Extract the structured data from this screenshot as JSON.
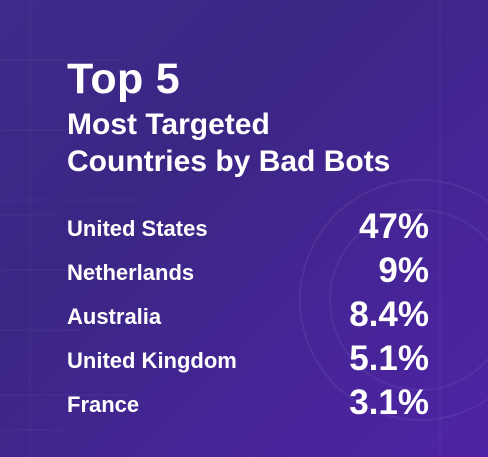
{
  "chart_data": {
    "type": "table",
    "title": "Top 5",
    "subtitle_lines": [
      "Most Targeted",
      "Countries by Bad Bots"
    ],
    "rows": [
      {
        "country": "United States",
        "value": 47,
        "label": "47%"
      },
      {
        "country": "Netherlands",
        "value": 9,
        "label": "9%"
      },
      {
        "country": "Australia",
        "value": 8.4,
        "label": "8.4%"
      },
      {
        "country": "United Kingdom",
        "value": 5.1,
        "label": "5.1%"
      },
      {
        "country": "France",
        "value": 3.1,
        "label": "3.1%"
      }
    ]
  },
  "colors": {
    "background": "#3f2a8a",
    "accent": "#4f23a5",
    "text": "#ffffff"
  }
}
